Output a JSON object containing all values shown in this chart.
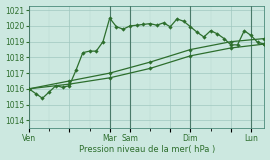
{
  "xlabel": "Pression niveau de la mer( hPa )",
  "bg_color": "#cce8e0",
  "grid_color": "#b8ddd5",
  "line_color": "#2d6e2d",
  "ylim": [
    1013.5,
    1021.3
  ],
  "yticks": [
    1014,
    1015,
    1016,
    1017,
    1018,
    1019,
    1020,
    1021
  ],
  "day_labels": [
    "Ven",
    "",
    "Mar",
    "Sam",
    "",
    "Dim",
    "",
    "Lun"
  ],
  "day_positions": [
    0,
    6,
    12,
    15,
    21,
    24,
    30,
    33
  ],
  "vline_positions": [
    0,
    12,
    15,
    24,
    33
  ],
  "series1_x": [
    0,
    1,
    2,
    3,
    4,
    5,
    6,
    7,
    8,
    9,
    10,
    11,
    12,
    13,
    14,
    15,
    16,
    17,
    18,
    19,
    20,
    21,
    22,
    23,
    24,
    25,
    26,
    27,
    28,
    29,
    30,
    31,
    32,
    33,
    34,
    35
  ],
  "series1_y": [
    1016.0,
    1015.7,
    1015.4,
    1015.8,
    1016.2,
    1016.1,
    1016.2,
    1017.2,
    1018.3,
    1018.4,
    1018.4,
    1019.0,
    1020.5,
    1019.95,
    1019.8,
    1020.0,
    1020.05,
    1020.1,
    1020.15,
    1020.05,
    1020.2,
    1019.95,
    1020.45,
    1020.3,
    1019.95,
    1019.6,
    1019.3,
    1019.7,
    1019.5,
    1019.2,
    1018.8,
    1018.8,
    1019.7,
    1019.4,
    1018.95,
    1018.85
  ],
  "series2_x": [
    0,
    6,
    12,
    18,
    24,
    30,
    35
  ],
  "series2_y": [
    1016.0,
    1016.5,
    1017.0,
    1017.7,
    1018.5,
    1019.0,
    1019.2
  ],
  "series3_x": [
    0,
    6,
    12,
    18,
    24,
    30,
    35
  ],
  "series3_y": [
    1016.0,
    1016.3,
    1016.7,
    1017.3,
    1018.1,
    1018.6,
    1018.85
  ],
  "xmin": 0,
  "xmax": 35
}
